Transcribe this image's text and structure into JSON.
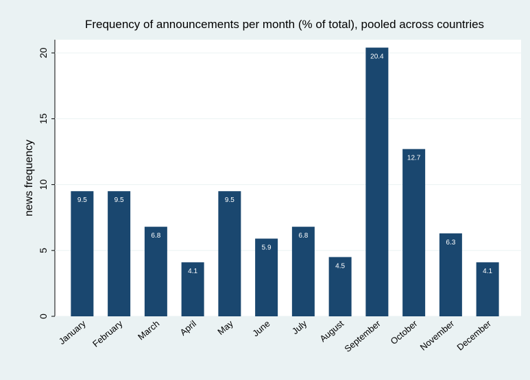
{
  "chart_data": {
    "type": "bar",
    "title": "Frequency of announcements per month (% of total), pooled across countries",
    "y_label": "news frequency",
    "categories": [
      "January",
      "February",
      "March",
      "April",
      "May",
      "June",
      "July",
      "August",
      "September",
      "October",
      "November",
      "December"
    ],
    "values": [
      9.5,
      9.5,
      6.8,
      4.1,
      9.5,
      5.9,
      6.8,
      4.5,
      20.4,
      12.7,
      6.3,
      4.1
    ],
    "color": "#1a476f",
    "ylim": [
      0,
      21
    ],
    "yticks": [
      0,
      5,
      10,
      15,
      20
    ],
    "grid": true
  }
}
